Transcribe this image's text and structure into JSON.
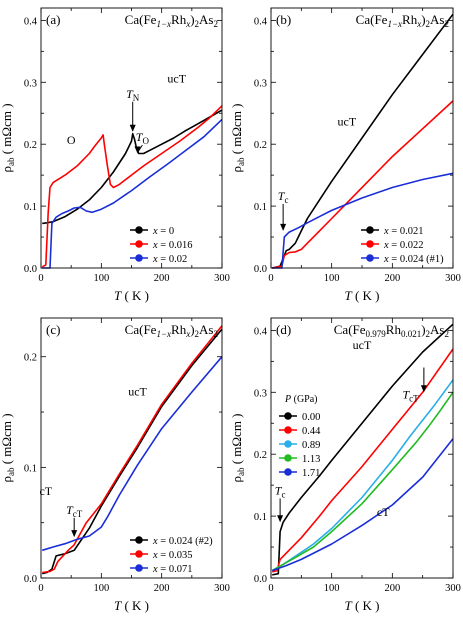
{
  "chart_data": [
    {
      "id": "a",
      "type": "line",
      "panel_label": "(a)",
      "title": "Ca(Fe1−xRhx)2As2",
      "title_parts": [
        "Ca(Fe",
        "1−x",
        "Rh",
        "x",
        ")",
        "2",
        "As",
        "2"
      ],
      "xlabel": "T ( K )",
      "ylabel": "ρab ( mΩcm )",
      "xlim": [
        0,
        300
      ],
      "ylim": [
        0,
        0.42
      ],
      "xticks": [
        0,
        100,
        200,
        300
      ],
      "yticks": [
        0.0,
        0.1,
        0.2,
        0.3,
        0.4
      ],
      "ytick_labels": [
        "0.0",
        "0.1",
        "0.2",
        "0.3",
        "0.4"
      ],
      "legend": "bottom-right",
      "series": [
        {
          "name": "x = 0",
          "color": "#000000",
          "points": [
            [
              2,
              0.072
            ],
            [
              10,
              0.073
            ],
            [
              20,
              0.075
            ],
            [
              40,
              0.083
            ],
            [
              60,
              0.095
            ],
            [
              80,
              0.11
            ],
            [
              100,
              0.13
            ],
            [
              120,
              0.155
            ],
            [
              140,
              0.185
            ],
            [
              150,
              0.205
            ],
            [
              152,
              0.217
            ],
            [
              155,
              0.208
            ],
            [
              158,
              0.195
            ],
            [
              162,
              0.185
            ],
            [
              170,
              0.185
            ],
            [
              180,
              0.19
            ],
            [
              200,
              0.2
            ],
            [
              220,
              0.21
            ],
            [
              240,
              0.222
            ],
            [
              260,
              0.233
            ],
            [
              280,
              0.244
            ],
            [
              300,
              0.255
            ]
          ]
        },
        {
          "name": "x = 0.016",
          "color": "#ff0000",
          "points": [
            [
              2,
              0.002
            ],
            [
              8,
              0.005
            ],
            [
              12,
              0.09
            ],
            [
              15,
              0.13
            ],
            [
              20,
              0.138
            ],
            [
              40,
              0.15
            ],
            [
              60,
              0.165
            ],
            [
              80,
              0.185
            ],
            [
              90,
              0.198
            ],
            [
              100,
              0.21
            ],
            [
              103,
              0.215
            ],
            [
              105,
              0.2
            ],
            [
              110,
              0.165
            ],
            [
              115,
              0.135
            ],
            [
              120,
              0.13
            ],
            [
              130,
              0.135
            ],
            [
              150,
              0.15
            ],
            [
              170,
              0.165
            ],
            [
              200,
              0.185
            ],
            [
              230,
              0.205
            ],
            [
              260,
              0.227
            ],
            [
              280,
              0.243
            ],
            [
              300,
              0.262
            ]
          ]
        },
        {
          "name": "x = 0.02",
          "color": "#1a2ed8",
          "points": [
            [
              2,
              0.0
            ],
            [
              15,
              0.0
            ],
            [
              18,
              0.072
            ],
            [
              25,
              0.082
            ],
            [
              35,
              0.088
            ],
            [
              45,
              0.092
            ],
            [
              55,
              0.097
            ],
            [
              65,
              0.098
            ],
            [
              75,
              0.092
            ],
            [
              85,
              0.09
            ],
            [
              100,
              0.095
            ],
            [
              120,
              0.105
            ],
            [
              150,
              0.125
            ],
            [
              180,
              0.147
            ],
            [
              210,
              0.168
            ],
            [
              240,
              0.19
            ],
            [
              270,
              0.212
            ],
            [
              300,
              0.24
            ]
          ]
        }
      ],
      "annotations": [
        {
          "text": "ucT",
          "x": 225,
          "y": 0.3
        },
        {
          "text": "O",
          "x": 50,
          "y": 0.2
        },
        {
          "text": "TN",
          "main": "T",
          "sub": "N",
          "x": 152,
          "y": 0.275,
          "arrow_to": [
            152,
            0.22
          ]
        },
        {
          "text": "TO",
          "main": "T",
          "sub": "O",
          "x": 168,
          "y": 0.205,
          "arrow_to": [
            160,
            0.185
          ]
        }
      ]
    },
    {
      "id": "b",
      "type": "line",
      "panel_label": "(b)",
      "title": "Ca(Fe1−xRhx)2As2",
      "title_parts": [
        "Ca(Fe",
        "1−x",
        "Rh",
        "x",
        ")",
        "2",
        "As",
        "2"
      ],
      "xlabel": "T ( K )",
      "ylabel": "ρab ( mΩcm )",
      "xlim": [
        0,
        300
      ],
      "ylim": [
        0,
        0.42
      ],
      "xticks": [
        0,
        100,
        200,
        300
      ],
      "yticks": [
        0.0,
        0.1,
        0.2,
        0.3,
        0.4
      ],
      "ytick_labels": [
        "0.0",
        "0.1",
        "0.2",
        "0.3",
        "0.4"
      ],
      "legend": "bottom-right",
      "series": [
        {
          "name": "x = 0.021",
          "color": "#000000",
          "points": [
            [
              2,
              0.0
            ],
            [
              15,
              0.003
            ],
            [
              20,
              0.015
            ],
            [
              25,
              0.028
            ],
            [
              30,
              0.03
            ],
            [
              40,
              0.04
            ],
            [
              50,
              0.06
            ],
            [
              60,
              0.08
            ],
            [
              80,
              0.11
            ],
            [
              100,
              0.14
            ],
            [
              150,
              0.21
            ],
            [
              200,
              0.28
            ],
            [
              250,
              0.345
            ],
            [
              300,
              0.41
            ]
          ]
        },
        {
          "name": "x = 0.022",
          "color": "#ff0000",
          "points": [
            [
              2,
              0.0
            ],
            [
              18,
              0.003
            ],
            [
              22,
              0.02
            ],
            [
              30,
              0.025
            ],
            [
              40,
              0.026
            ],
            [
              50,
              0.03
            ],
            [
              60,
              0.04
            ],
            [
              80,
              0.06
            ],
            [
              100,
              0.08
            ],
            [
              130,
              0.11
            ],
            [
              160,
              0.14
            ],
            [
              200,
              0.18
            ],
            [
              250,
              0.225
            ],
            [
              300,
              0.27
            ]
          ]
        },
        {
          "name": "x = 0.024 (#1)",
          "color": "#1a2ed8",
          "points": [
            [
              2,
              0.0
            ],
            [
              18,
              0.0
            ],
            [
              22,
              0.05
            ],
            [
              30,
              0.058
            ],
            [
              45,
              0.065
            ],
            [
              60,
              0.073
            ],
            [
              80,
              0.083
            ],
            [
              100,
              0.093
            ],
            [
              150,
              0.113
            ],
            [
              200,
              0.13
            ],
            [
              250,
              0.143
            ],
            [
              300,
              0.153
            ]
          ]
        }
      ],
      "annotations": [
        {
          "text": "ucT",
          "x": 125,
          "y": 0.23
        },
        {
          "text": "Tc",
          "main": "T",
          "sub": "c",
          "x": 20,
          "y": 0.11,
          "arrow_to": [
            20,
            0.06
          ]
        }
      ]
    },
    {
      "id": "c",
      "type": "line",
      "panel_label": "(c)",
      "title": "Ca(Fe1−xRhx)2As2",
      "title_parts": [
        "Ca(Fe",
        "1−x",
        "Rh",
        "x",
        ")",
        "2",
        "As",
        "2"
      ],
      "xlabel": "T ( K )",
      "ylabel": "ρab ( mΩcm )",
      "xlim": [
        0,
        300
      ],
      "ylim": [
        0,
        0.235
      ],
      "xticks": [
        0,
        100,
        200,
        300
      ],
      "yticks": [
        0.0,
        0.1,
        0.2
      ],
      "ytick_labels": [
        "0.0",
        "0.1",
        "0.2"
      ],
      "legend": "bottom-right",
      "series": [
        {
          "name": "x = 0.024 (#2)",
          "color": "#000000",
          "points": [
            [
              2,
              0.004
            ],
            [
              10,
              0.005
            ],
            [
              18,
              0.008
            ],
            [
              25,
              0.02
            ],
            [
              40,
              0.022
            ],
            [
              55,
              0.025
            ],
            [
              65,
              0.033
            ],
            [
              80,
              0.045
            ],
            [
              100,
              0.065
            ],
            [
              130,
              0.092
            ],
            [
              160,
              0.118
            ],
            [
              200,
              0.155
            ],
            [
              250,
              0.192
            ],
            [
              300,
              0.225
            ]
          ]
        },
        {
          "name": "x = 0.035",
          "color": "#ff0000",
          "points": [
            [
              2,
              0.005
            ],
            [
              15,
              0.006
            ],
            [
              22,
              0.008
            ],
            [
              28,
              0.015
            ],
            [
              45,
              0.025
            ],
            [
              55,
              0.03
            ],
            [
              65,
              0.04
            ],
            [
              75,
              0.05
            ],
            [
              100,
              0.067
            ],
            [
              130,
              0.094
            ],
            [
              160,
              0.12
            ],
            [
              200,
              0.157
            ],
            [
              250,
              0.194
            ],
            [
              300,
              0.228
            ]
          ]
        },
        {
          "name": "x = 0.071",
          "color": "#1a2ed8",
          "points": [
            [
              2,
              0.025
            ],
            [
              20,
              0.028
            ],
            [
              40,
              0.031
            ],
            [
              60,
              0.035
            ],
            [
              80,
              0.038
            ],
            [
              100,
              0.046
            ],
            [
              110,
              0.055
            ],
            [
              130,
              0.075
            ],
            [
              160,
              0.102
            ],
            [
              200,
              0.135
            ],
            [
              250,
              0.168
            ],
            [
              300,
              0.2
            ]
          ]
        }
      ],
      "annotations": [
        {
          "text": "ucT",
          "x": 160,
          "y": 0.165
        },
        {
          "text": "cT",
          "x": 8,
          "y": 0.075
        },
        {
          "text": "TcT",
          "main": "T",
          "sub": "cT",
          "x": 55,
          "y": 0.058,
          "arrow_to": [
            55,
            0.037
          ]
        }
      ]
    },
    {
      "id": "d",
      "type": "line",
      "panel_label": "(d)",
      "title": "Ca(Fe0.979Rh0.021)2As2",
      "title_parts": [
        "Ca(Fe",
        "0.979",
        "Rh",
        "0.021",
        ")",
        "2",
        "As",
        "2"
      ],
      "xlabel": "T ( K )",
      "ylabel": "ρab ( mΩcm )",
      "xlim": [
        0,
        300
      ],
      "ylim": [
        0,
        0.42
      ],
      "xticks": [
        0,
        100,
        200,
        300
      ],
      "yticks": [
        0.0,
        0.1,
        0.2,
        0.3,
        0.4
      ],
      "ytick_labels": [
        "0.0",
        "0.1",
        "0.2",
        "0.3",
        "0.4"
      ],
      "legend": "center-left",
      "legend_title": "P (GPa)",
      "series": [
        {
          "name": "0.00",
          "color": "#000000",
          "points": [
            [
              2,
              0.005
            ],
            [
              12,
              0.007
            ],
            [
              15,
              0.075
            ],
            [
              20,
              0.09
            ],
            [
              30,
              0.105
            ],
            [
              50,
              0.13
            ],
            [
              80,
              0.165
            ],
            [
              100,
              0.19
            ],
            [
              150,
              0.25
            ],
            [
              200,
              0.31
            ],
            [
              250,
              0.365
            ],
            [
              300,
              0.41
            ]
          ]
        },
        {
          "name": "0.44",
          "color": "#ff0000",
          "points": [
            [
              2,
              0.01
            ],
            [
              10,
              0.012
            ],
            [
              15,
              0.03
            ],
            [
              25,
              0.04
            ],
            [
              50,
              0.065
            ],
            [
              80,
              0.1
            ],
            [
              100,
              0.125
            ],
            [
              150,
              0.18
            ],
            [
              200,
              0.24
            ],
            [
              250,
              0.3
            ],
            [
              300,
              0.37
            ]
          ]
        },
        {
          "name": "0.89",
          "color": "#29aee8",
          "points": [
            [
              2,
              0.012
            ],
            [
              20,
              0.022
            ],
            [
              40,
              0.035
            ],
            [
              70,
              0.055
            ],
            [
              100,
              0.08
            ],
            [
              150,
              0.13
            ],
            [
              200,
              0.19
            ],
            [
              230,
              0.23
            ],
            [
              250,
              0.255
            ],
            [
              270,
              0.28
            ],
            [
              300,
              0.32
            ]
          ]
        },
        {
          "name": "1.13",
          "color": "#22bb22",
          "points": [
            [
              2,
              0.012
            ],
            [
              20,
              0.022
            ],
            [
              40,
              0.033
            ],
            [
              70,
              0.05
            ],
            [
              100,
              0.075
            ],
            [
              150,
              0.12
            ],
            [
              200,
              0.175
            ],
            [
              240,
              0.22
            ],
            [
              260,
              0.245
            ],
            [
              280,
              0.272
            ],
            [
              300,
              0.3
            ]
          ]
        },
        {
          "name": "1.71",
          "color": "#1a2ed8",
          "points": [
            [
              2,
              0.012
            ],
            [
              25,
              0.02
            ],
            [
              50,
              0.03
            ],
            [
              100,
              0.055
            ],
            [
              150,
              0.085
            ],
            [
              200,
              0.118
            ],
            [
              250,
              0.163
            ],
            [
              300,
              0.225
            ]
          ]
        }
      ],
      "annotations": [
        {
          "text": "ucT",
          "x": 150,
          "y": 0.37
        },
        {
          "text": "cT",
          "x": 185,
          "y": 0.1
        },
        {
          "text": "Tc",
          "main": "T",
          "sub": "c",
          "x": 15,
          "y": 0.135,
          "arrow_to": [
            15,
            0.09
          ]
        },
        {
          "text": "TcT",
          "main": "T",
          "sub": "cT",
          "x": 230,
          "y": 0.29
        },
        {
          "text": "arrow",
          "x": 252,
          "y": 0.34,
          "arrow_to": [
            252,
            0.3
          ]
        }
      ]
    }
  ]
}
